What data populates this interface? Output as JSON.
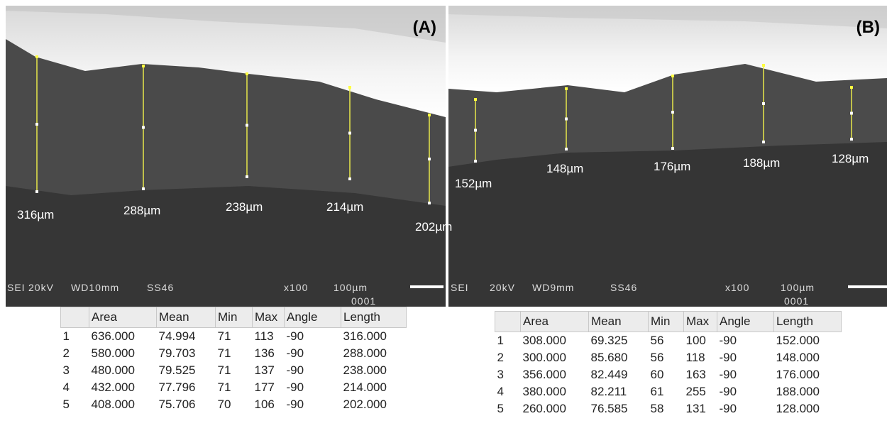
{
  "panels": [
    {
      "label": "(A)",
      "measurements": [
        "316µm",
        "288µm",
        "238µm",
        "214µm",
        "202µm"
      ],
      "footer": [
        "SEI",
        "20kV",
        "WD10mm",
        "SS46",
        "x100",
        "100µm",
        "0001"
      ],
      "table": {
        "header": [
          "",
          "Area",
          "Mean",
          "Min",
          "Max",
          "Angle",
          "Length"
        ],
        "rows": [
          [
            "1",
            "636.000",
            "74.994",
            "71",
            "113",
            "-90",
            "316.000"
          ],
          [
            "2",
            "580.000",
            "79.703",
            "71",
            "136",
            "-90",
            "288.000"
          ],
          [
            "3",
            "480.000",
            "79.525",
            "71",
            "137",
            "-90",
            "238.000"
          ],
          [
            "4",
            "432.000",
            "77.796",
            "71",
            "177",
            "-90",
            "214.000"
          ],
          [
            "5",
            "408.000",
            "75.706",
            "70",
            "106",
            "-90",
            "202.000"
          ]
        ]
      }
    },
    {
      "label": "(B)",
      "measurements": [
        "152µm",
        "148µm",
        "176µm",
        "188µm",
        "128µm"
      ],
      "footer": [
        "SEI",
        "20kV",
        "WD9mm",
        "SS46",
        "x100",
        "100µm",
        "0001"
      ],
      "table": {
        "header": [
          "",
          "Area",
          "Mean",
          "Min",
          "Max",
          "Angle",
          "Length"
        ],
        "rows": [
          [
            "1",
            "308.000",
            "69.325",
            "56",
            "100",
            "-90",
            "152.000"
          ],
          [
            "2",
            "300.000",
            "85.680",
            "56",
            "118",
            "-90",
            "148.000"
          ],
          [
            "3",
            "356.000",
            "82.449",
            "60",
            "163",
            "-90",
            "176.000"
          ],
          [
            "4",
            "380.000",
            "82.211",
            "61",
            "255",
            "-90",
            "188.000"
          ],
          [
            "5",
            "260.000",
            "76.585",
            "58",
            "131",
            "-90",
            "128.000"
          ]
        ]
      }
    }
  ]
}
